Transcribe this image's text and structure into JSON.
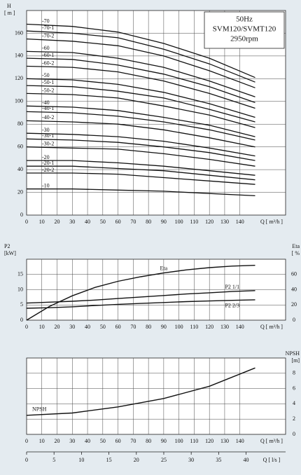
{
  "chart_data": [
    {
      "type": "line",
      "color": "#111111",
      "grid": true,
      "ylabel": "H",
      "yunit": "[ m ]",
      "xlabel": "Q [ m³/h ]",
      "annotation": [
        "50Hz",
        "SVM120/SVMT120",
        "2950rpm"
      ],
      "xlim": [
        0,
        170
      ],
      "ylim": [
        0,
        180
      ],
      "xticks": [
        0,
        10,
        20,
        30,
        40,
        50,
        60,
        70,
        80,
        90,
        100,
        110,
        120,
        130,
        140
      ],
      "yticks": [
        0,
        20,
        40,
        60,
        80,
        100,
        120,
        140,
        160
      ],
      "x": [
        0,
        30,
        60,
        90,
        120,
        150
      ],
      "series": [
        {
          "name": "-70",
          "values": [
            168,
            166,
            161,
            151,
            138,
            121
          ]
        },
        {
          "name": "-70-1",
          "values": [
            162,
            160,
            156,
            146,
            133,
            117
          ]
        },
        {
          "name": "-70-2",
          "values": [
            155,
            153,
            149,
            140,
            127,
            112
          ]
        },
        {
          "name": "-60",
          "values": [
            144,
            143,
            138,
            130,
            118,
            104
          ]
        },
        {
          "name": "-60-1",
          "values": [
            138,
            137,
            132,
            124,
            113,
            99
          ]
        },
        {
          "name": "-60-2",
          "values": [
            131,
            130,
            126,
            118,
            107,
            94
          ]
        },
        {
          "name": "-50",
          "values": [
            120,
            119,
            115,
            108,
            98,
            86
          ]
        },
        {
          "name": "-50-1",
          "values": [
            114,
            113,
            109,
            103,
            93,
            82
          ]
        },
        {
          "name": "-50-2",
          "values": [
            107,
            106,
            103,
            96,
            88,
            77
          ]
        },
        {
          "name": "-40",
          "values": [
            96,
            95,
            92,
            86,
            79,
            69
          ]
        },
        {
          "name": "-40-1",
          "values": [
            91,
            90,
            87,
            82,
            75,
            66
          ]
        },
        {
          "name": "-40-2",
          "values": [
            83,
            82,
            80,
            75,
            68,
            60
          ]
        },
        {
          "name": "-30",
          "values": [
            72,
            71,
            69,
            65,
            59,
            52
          ]
        },
        {
          "name": "-30-1",
          "values": [
            67,
            66,
            64,
            60,
            55,
            48
          ]
        },
        {
          "name": "-30-2",
          "values": [
            60,
            59,
            58,
            54,
            49,
            43
          ]
        },
        {
          "name": "-20",
          "values": [
            48,
            48,
            46,
            43,
            39,
            35
          ]
        },
        {
          "name": "-20-1",
          "values": [
            43,
            43,
            41,
            39,
            35,
            31
          ]
        },
        {
          "name": "-20-2",
          "values": [
            37,
            37,
            36,
            33,
            30,
            27
          ]
        },
        {
          "name": "-10",
          "values": [
            23,
            23,
            22,
            21,
            19,
            17
          ]
        }
      ]
    },
    {
      "type": "line",
      "color": "#111111",
      "grid": true,
      "ylabel": "P2",
      "yunit": "[kW]",
      "y2label": "Eta",
      "y2unit": "[ %",
      "xlabel": "Q [ m³/h ]",
      "xlim": [
        0,
        170
      ],
      "ylim": [
        0,
        20
      ],
      "y2lim": [
        0,
        80
      ],
      "xticks": [
        0,
        10,
        20,
        30,
        40,
        50,
        60,
        70,
        80,
        90,
        100,
        110,
        120,
        130,
        140
      ],
      "yticks": [
        0,
        5,
        10,
        15
      ],
      "y2ticks": [
        0,
        20,
        40,
        60
      ],
      "x": [
        0,
        15,
        30,
        45,
        60,
        75,
        90,
        105,
        120,
        135,
        150
      ],
      "series": [
        {
          "name": "Eta",
          "axis": "y2",
          "values": [
            0,
            18,
            32,
            43,
            51,
            57,
            62,
            66,
            69,
            71,
            72
          ]
        },
        {
          "name": "P2  1/1",
          "values": [
            5.6,
            5.9,
            6.2,
            6.6,
            7.1,
            7.6,
            8.1,
            8.6,
            9.0,
            9.4,
            9.7
          ]
        },
        {
          "name": "P2  2/3",
          "values": [
            3.9,
            4.1,
            4.4,
            4.8,
            5.2,
            5.5,
            5.8,
            6.1,
            6.3,
            6.5,
            6.7
          ]
        }
      ]
    },
    {
      "type": "line",
      "color": "#111111",
      "grid": true,
      "y2label": "NPSH",
      "y2unit": "[m]",
      "xlabel": "Q [ m³/h ]",
      "xlim": [
        0,
        170
      ],
      "y2lim": [
        0,
        10
      ],
      "xticks": [
        0,
        10,
        20,
        30,
        40,
        50,
        60,
        70,
        80,
        90,
        100,
        110,
        120,
        130,
        140
      ],
      "y2ticks": [
        0,
        2,
        4,
        6,
        8
      ],
      "x": [
        0,
        30,
        60,
        90,
        120,
        150
      ],
      "series": [
        {
          "name": "NPSH",
          "axis": "y2",
          "values": [
            2.5,
            2.8,
            3.6,
            4.7,
            6.3,
            8.7
          ]
        }
      ],
      "x2label": "Q [ l/s ]",
      "x2lim": [
        0,
        47.2
      ],
      "x2ticks": [
        0,
        5,
        10,
        15,
        20,
        25,
        30,
        35,
        40
      ]
    }
  ]
}
